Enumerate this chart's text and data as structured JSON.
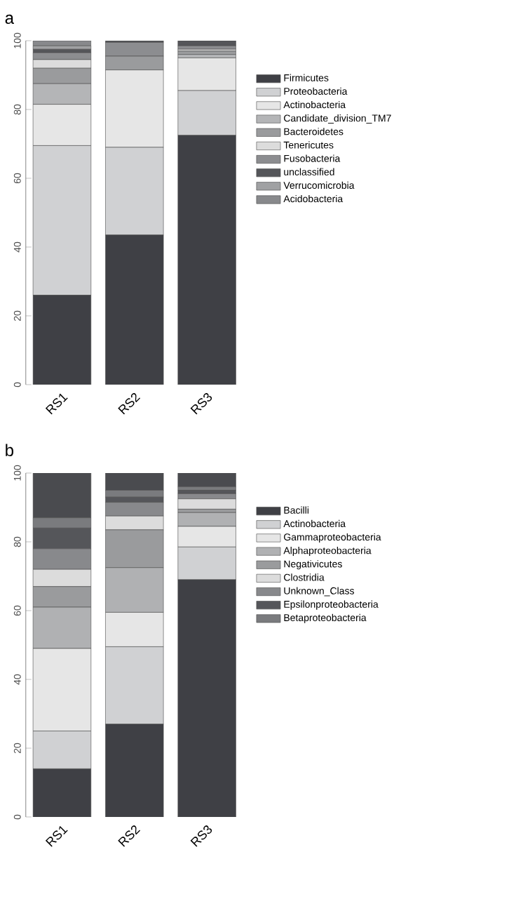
{
  "chart_data": [
    {
      "type": "bar",
      "title": "a",
      "stacked": true,
      "categories": [
        "RS1",
        "RS2",
        "RS3"
      ],
      "ylim": [
        0,
        100
      ],
      "yticks": [
        0,
        20,
        40,
        60,
        80,
        100
      ],
      "legend": "right",
      "grid": false,
      "series": [
        {
          "name": "Firmicutes",
          "color": "#3f4045",
          "values": [
            26,
            43.5,
            72.5
          ]
        },
        {
          "name": "Proteobacteria",
          "color": "#d0d1d3",
          "values": [
            43.5,
            25.5,
            13
          ]
        },
        {
          "name": "Actinobacteria",
          "color": "#e6e6e6",
          "values": [
            12,
            22.5,
            9.5
          ]
        },
        {
          "name": "Candidate_division_TM7",
          "color": "#b4b5b7",
          "values": [
            6,
            0,
            1
          ]
        },
        {
          "name": "Bacteroidetes",
          "color": "#9a9b9d",
          "values": [
            4.5,
            4,
            1
          ]
        },
        {
          "name": "Tenericutes",
          "color": "#dcdcdc",
          "values": [
            2.5,
            0,
            0.5
          ]
        },
        {
          "name": "Fusobacteria",
          "color": "#8c8d90",
          "values": [
            2,
            4,
            1
          ]
        },
        {
          "name": "unclassified",
          "color": "#55565a",
          "values": [
            1,
            0.5,
            1.5
          ]
        },
        {
          "name": "Verrucomicrobia",
          "color": "#a0a1a3",
          "values": [
            1,
            0,
            0
          ]
        },
        {
          "name": "Acidobacteria",
          "color": "#88898c",
          "values": [
            1.5,
            0,
            0
          ]
        }
      ]
    },
    {
      "type": "bar",
      "title": "b",
      "stacked": true,
      "categories": [
        "RS1",
        "RS2",
        "RS3"
      ],
      "ylim": [
        0,
        100
      ],
      "yticks": [
        0,
        20,
        40,
        60,
        80,
        100
      ],
      "legend": "right",
      "grid": false,
      "series": [
        {
          "name": "Bacilli",
          "color": "#3f4045",
          "values": [
            14,
            27,
            69
          ]
        },
        {
          "name": "Actinobacteria",
          "color": "#d0d1d3",
          "values": [
            11,
            22.5,
            9.5
          ]
        },
        {
          "name": "Gammaproteobacteria",
          "color": "#e6e6e6",
          "values": [
            24,
            10,
            6
          ]
        },
        {
          "name": "Alphaproteobacteria",
          "color": "#b0b1b3",
          "values": [
            12,
            13,
            4
          ]
        },
        {
          "name": "Negativicutes",
          "color": "#9a9b9d",
          "values": [
            6,
            11,
            1
          ]
        },
        {
          "name": "Clostridia",
          "color": "#dcdcdc",
          "values": [
            5,
            4,
            3
          ]
        },
        {
          "name": "Unknown_Class",
          "color": "#88898c",
          "values": [
            6,
            4,
            1.5
          ]
        },
        {
          "name": "Epsilonproteobacteria",
          "color": "#55565a",
          "values": [
            6,
            1.5,
            1
          ]
        },
        {
          "name": "Betaproteobacteria",
          "color": "#7a7b7e",
          "values": [
            3,
            2,
            1
          ]
        },
        {
          "color": "#4a4b4f",
          "values": [
            13,
            5,
            4
          ]
        }
      ]
    }
  ]
}
